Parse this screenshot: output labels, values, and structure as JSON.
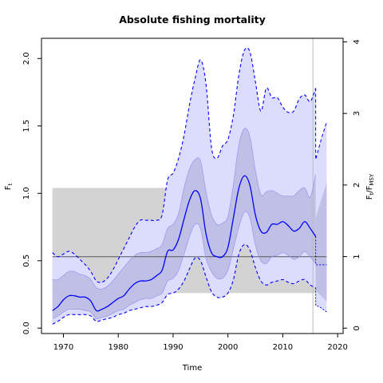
{
  "chart_data": {
    "type": "line",
    "title": "Absolute fishing mortality",
    "xlabel": "Time",
    "ylabel_left": {
      "main": "F",
      "sub": "t"
    },
    "ylabel_right": {
      "main": "F",
      "sub": "t",
      "slash": "/",
      "main2": "F",
      "sub2": "MSY"
    },
    "xlim": [
      1966,
      2021
    ],
    "ylim": [
      -0.04,
      2.15
    ],
    "ylim_right": [
      -0.075,
      4.05
    ],
    "x_ticks": [
      1970,
      1980,
      1990,
      2000,
      2010,
      2020
    ],
    "x_tick_labels": [
      "1970",
      "1980",
      "1990",
      "2000",
      "2010",
      "2020"
    ],
    "y_ticks": [
      0.0,
      0.5,
      1.0,
      1.5,
      2.0
    ],
    "y_tick_labels": [
      "0.0",
      "0.5",
      "1.0",
      "1.5",
      "2.0"
    ],
    "y_ticks_right": [
      0,
      1,
      2,
      3,
      4
    ],
    "y_tick_labels_right": [
      "0",
      "1",
      "2",
      "3",
      "4"
    ],
    "fmsy": 0.53,
    "fmsy_band": {
      "lower": 0.26,
      "upper": 1.04,
      "x_start": 1968,
      "x_end": 2018
    },
    "last_year": 2015.5,
    "grid": false,
    "colors": {
      "estimate": "#0000ff",
      "outer_band": "#dcdcff",
      "inner_band": "#b3b3dc",
      "fmsy_band": "#d3d3d3",
      "reference_line": "#555555",
      "vertical_line": "#bbbbbb"
    },
    "x": [
      1968,
      1969,
      1970,
      1971,
      1972,
      1973,
      1974,
      1975,
      1976,
      1977,
      1978,
      1979,
      1980,
      1981,
      1982,
      1983,
      1984,
      1985,
      1986,
      1987,
      1988,
      1989,
      1990,
      1991,
      1992,
      1993,
      1994,
      1995,
      1996,
      1997,
      1998,
      1999,
      2000,
      2001,
      2002,
      2003,
      2004,
      2005,
      2006,
      2007,
      2008,
      2009,
      2010,
      2011,
      2012,
      2013,
      2014,
      2015,
      2016
    ],
    "series": [
      {
        "role": "estimate",
        "values": [
          0.13,
          0.16,
          0.21,
          0.24,
          0.24,
          0.23,
          0.23,
          0.2,
          0.13,
          0.14,
          0.16,
          0.19,
          0.22,
          0.24,
          0.29,
          0.33,
          0.35,
          0.35,
          0.36,
          0.39,
          0.43,
          0.57,
          0.58,
          0.66,
          0.81,
          0.95,
          1.02,
          0.96,
          0.7,
          0.56,
          0.53,
          0.53,
          0.6,
          0.82,
          1.04,
          1.13,
          1.06,
          0.84,
          0.72,
          0.71,
          0.77,
          0.77,
          0.79,
          0.76,
          0.72,
          0.74,
          0.79,
          0.74,
          0.68
        ]
      },
      {
        "role": "upper-95",
        "values": [
          0.56,
          0.53,
          0.55,
          0.57,
          0.55,
          0.51,
          0.47,
          0.42,
          0.35,
          0.34,
          0.37,
          0.43,
          0.51,
          0.59,
          0.67,
          0.75,
          0.8,
          0.8,
          0.8,
          0.8,
          0.84,
          1.1,
          1.15,
          1.26,
          1.43,
          1.66,
          1.85,
          1.99,
          1.81,
          1.34,
          1.26,
          1.35,
          1.4,
          1.58,
          1.88,
          2.06,
          2.05,
          1.83,
          1.61,
          1.78,
          1.71,
          1.71,
          1.64,
          1.6,
          1.61,
          1.7,
          1.73,
          1.68,
          1.78
        ]
      },
      {
        "role": "lower-95",
        "values": [
          0.03,
          0.05,
          0.08,
          0.1,
          0.1,
          0.1,
          0.1,
          0.09,
          0.05,
          0.06,
          0.07,
          0.08,
          0.1,
          0.11,
          0.13,
          0.14,
          0.15,
          0.16,
          0.16,
          0.17,
          0.19,
          0.25,
          0.26,
          0.29,
          0.35,
          0.44,
          0.52,
          0.5,
          0.38,
          0.27,
          0.23,
          0.23,
          0.26,
          0.36,
          0.55,
          0.62,
          0.58,
          0.45,
          0.35,
          0.32,
          0.34,
          0.35,
          0.36,
          0.34,
          0.33,
          0.35,
          0.36,
          0.32,
          0.3
        ]
      },
      {
        "role": "inner-upper",
        "values": [
          0.36,
          0.36,
          0.39,
          0.42,
          0.42,
          0.4,
          0.39,
          0.36,
          0.3,
          0.29,
          0.31,
          0.35,
          0.4,
          0.45,
          0.5,
          0.54,
          0.56,
          0.56,
          0.57,
          0.59,
          0.62,
          0.74,
          0.77,
          0.85,
          1.04,
          1.18,
          1.25,
          1.24,
          1.01,
          0.84,
          0.77,
          0.78,
          0.83,
          1.07,
          1.36,
          1.48,
          1.42,
          1.17,
          0.99,
          1.01,
          1.02,
          1.0,
          0.98,
          0.98,
          0.98,
          1.02,
          1.04,
          0.97,
          1.14
        ]
      },
      {
        "role": "inner-lower",
        "values": [
          0.07,
          0.09,
          0.12,
          0.14,
          0.14,
          0.14,
          0.13,
          0.12,
          0.07,
          0.08,
          0.09,
          0.11,
          0.13,
          0.14,
          0.17,
          0.19,
          0.21,
          0.22,
          0.22,
          0.24,
          0.26,
          0.35,
          0.37,
          0.43,
          0.55,
          0.68,
          0.77,
          0.74,
          0.52,
          0.42,
          0.37,
          0.37,
          0.43,
          0.59,
          0.75,
          0.86,
          0.82,
          0.62,
          0.5,
          0.48,
          0.53,
          0.54,
          0.56,
          0.54,
          0.51,
          0.53,
          0.57,
          0.53,
          0.48
        ]
      }
    ],
    "forecast": {
      "x": [
        2016,
        2017,
        2018
      ],
      "estimate_level": 0.47,
      "upper": [
        1.25,
        1.4,
        1.53
      ],
      "lower": [
        0.17,
        0.15,
        0.12
      ],
      "inner_upper": [
        0.82,
        0.95,
        1.08
      ],
      "inner_lower": [
        0.28,
        0.24,
        0.2
      ]
    }
  }
}
